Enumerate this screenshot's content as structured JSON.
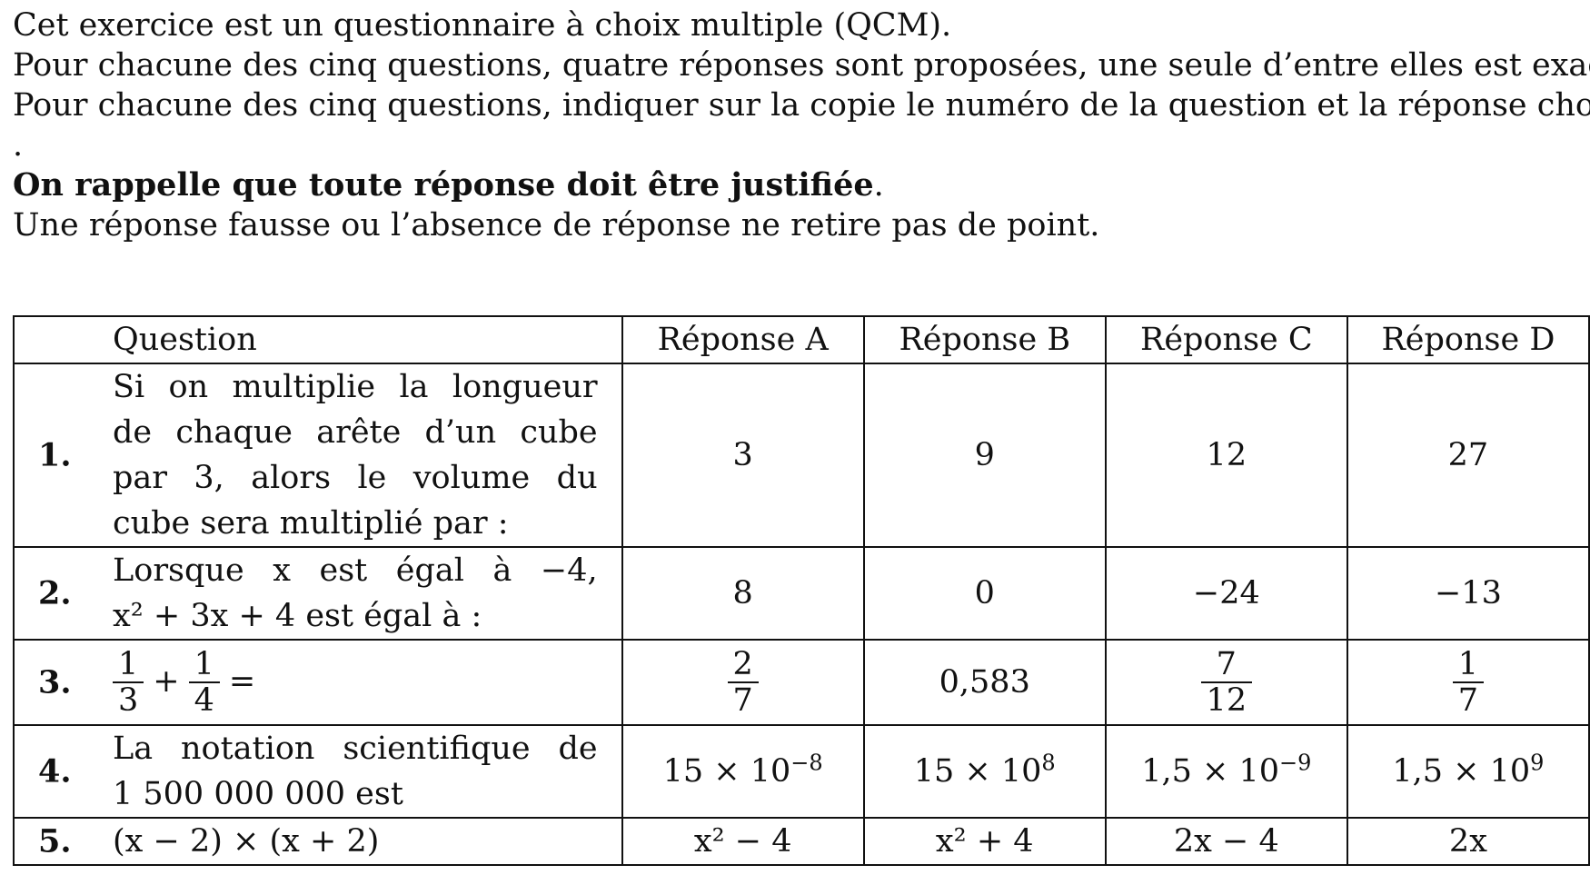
{
  "intro": {
    "line1": "Cet exercice est un questionnaire à choix multiple (QCM).",
    "line2": "Pour chacune des cinq questions, quatre réponses sont proposées, une seule d’entre elles est exacte.",
    "line3": "Pour chacune des cinq questions, indiquer sur la copie le numéro de la question et la réponse choisie",
    "line4": ".",
    "line5_bold": "On rappelle que toute réponse doit être justifiée",
    "line5_end": ".",
    "line6": "Une réponse fausse ou l’absence de réponse ne retire pas de point."
  },
  "table": {
    "headers": [
      "Question",
      "Réponse A",
      "Réponse B",
      "Réponse C",
      "Réponse D"
    ],
    "rows": [
      {
        "num": "1.",
        "question_lines": [
          "Si on multiplie la longueur",
          "de chaque arête d’un cube",
          "par 3, alors le volume du",
          "cube sera multiplié par :"
        ],
        "answers": [
          "3",
          "9",
          "12",
          "27"
        ]
      },
      {
        "num": "2.",
        "question_line1": "Lorsque x est égal à −4,",
        "question_line2": "x² + 3x + 4 est égal à :",
        "answers": [
          "8",
          "0",
          "−24",
          "−13"
        ]
      },
      {
        "num": "3.",
        "question": "1/3 + 1/4 =",
        "frac1": {
          "num": "1",
          "den": "3"
        },
        "frac2": {
          "num": "1",
          "den": "4"
        },
        "op": "+",
        "eq": "=",
        "answerA": {
          "num": "2",
          "den": "7"
        },
        "answerB": "0,583",
        "answerC": {
          "num": "7",
          "den": "12"
        },
        "answerD": {
          "num": "1",
          "den": "7"
        }
      },
      {
        "num": "4.",
        "question_line1": "La notation scientifique de",
        "question_line2": "1 500 000 000 est",
        "answers": [
          {
            "mant": "15 × 10",
            "exp": "−8"
          },
          {
            "mant": "15 × 10",
            "exp": "8"
          },
          {
            "mant": "1,5 × 10",
            "exp": "−9"
          },
          {
            "mant": "1,5 × 10",
            "exp": "9"
          }
        ]
      },
      {
        "num": "5.",
        "question": "(x − 2) × (x + 2)",
        "answers": [
          "x² − 4",
          "x² + 4",
          "2x − 4",
          "2x"
        ]
      }
    ]
  }
}
